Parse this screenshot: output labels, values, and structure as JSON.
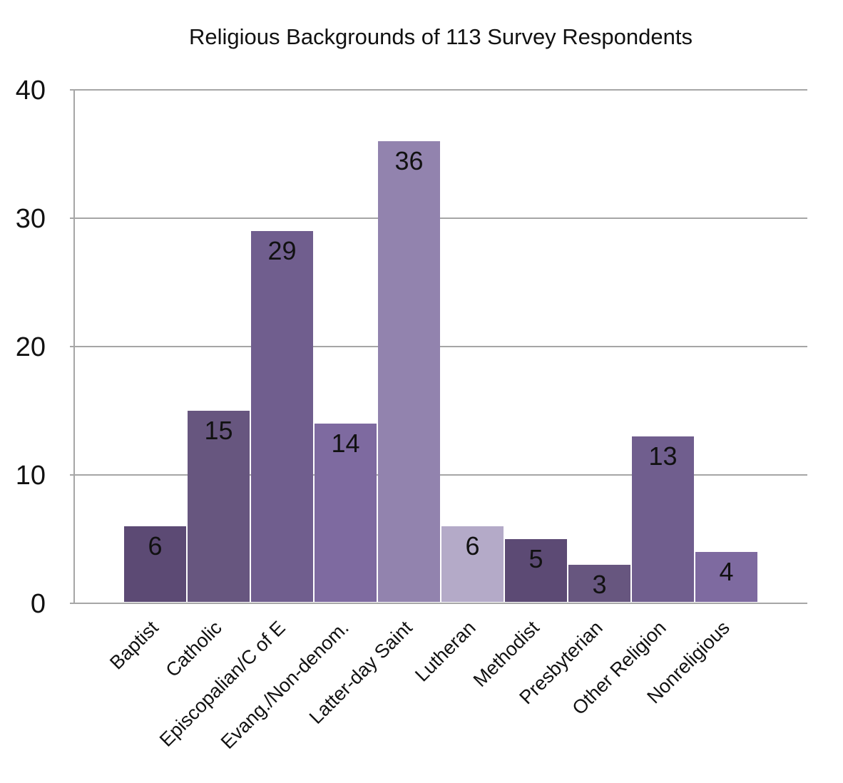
{
  "chart_data": {
    "type": "bar",
    "title": "Religious Backgrounds of 113 Survey Respondents",
    "xlabel": "",
    "ylabel": "",
    "ylim": [
      0,
      40
    ],
    "yticks": [
      "0",
      "10",
      "20",
      "30",
      "40"
    ],
    "grid": true,
    "legend": "none",
    "categories": [
      "Baptist",
      "Catholic",
      "Episcopalian/C of E",
      "Evang./Non-denom.",
      "Latter-day Saint",
      "Lutheran",
      "Methodist",
      "Presbyterian",
      "Other Religion",
      "Nonreligious"
    ],
    "values": [
      6,
      15,
      29,
      14,
      36,
      6,
      5,
      3,
      13,
      4
    ],
    "data_labels": [
      "6",
      "15",
      "29",
      "14",
      "36",
      "6",
      "5",
      "3",
      "13",
      "4"
    ],
    "colors": [
      "#5c4a74",
      "#67567f",
      "#705e8e",
      "#7e6aa0",
      "#9283ae",
      "#b4aac8",
      "#5c4a74",
      "#67567f",
      "#705e8e",
      "#7e6aa0"
    ]
  }
}
